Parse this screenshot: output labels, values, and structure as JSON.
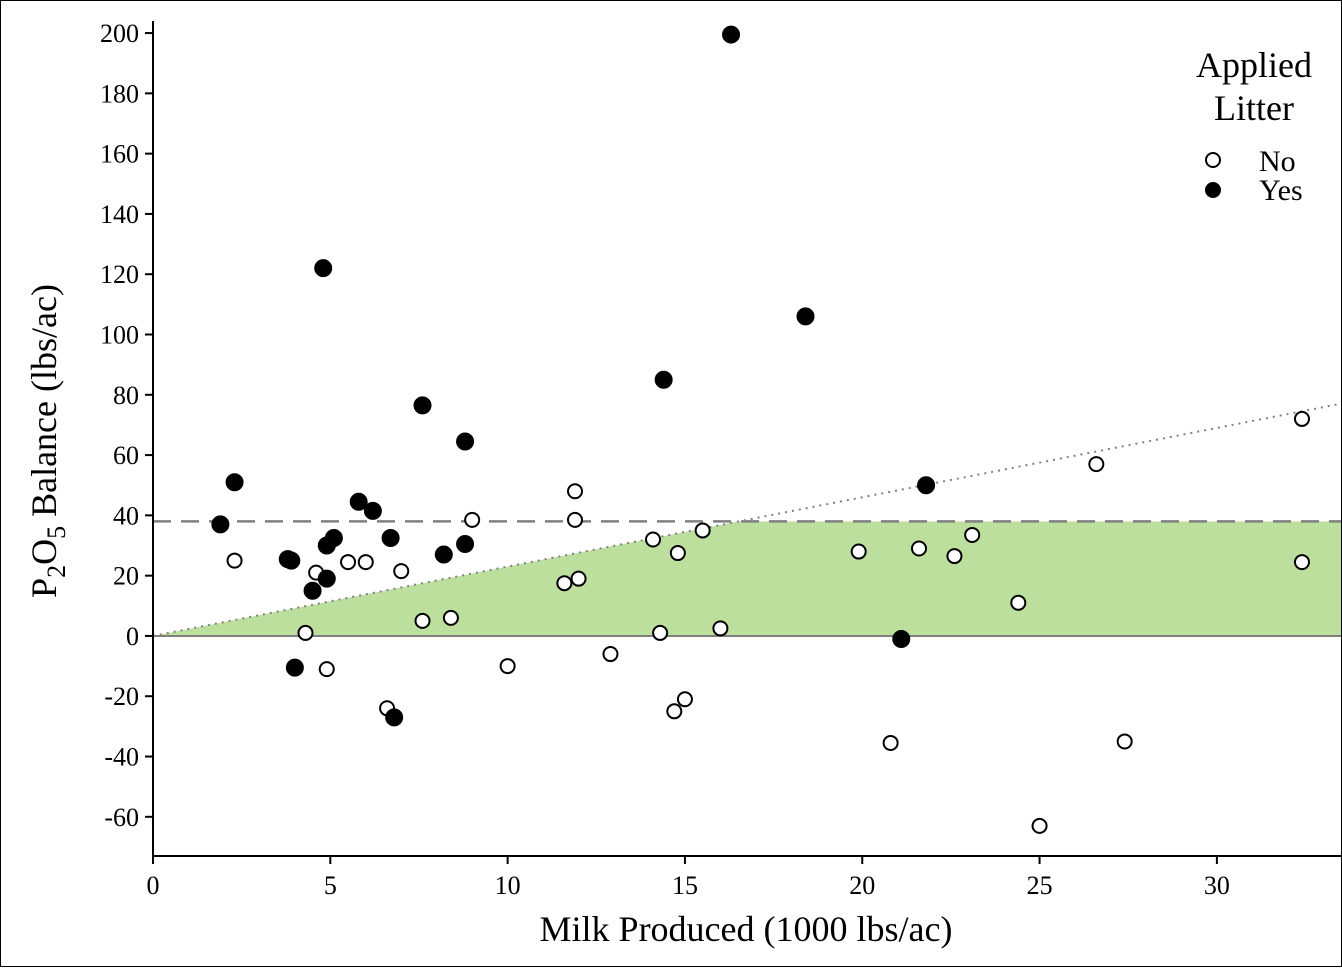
{
  "chart_data": {
    "type": "scatter",
    "xlabel": "Milk Produced (1000 lbs/ac)",
    "ylabel": {
      "p1": "P",
      "sub": "2",
      "p2": "O",
      "sub2": "5",
      "p3": " Balance (lbs/ac)"
    },
    "xlim": [
      0,
      33.5
    ],
    "ylim": [
      -73,
      204
    ],
    "x_ticks": [
      0,
      5,
      10,
      15,
      20,
      25,
      30
    ],
    "y_ticks": [
      200,
      180,
      160,
      140,
      120,
      100,
      80,
      60,
      40,
      20,
      0,
      -20,
      -40,
      -60
    ],
    "grid": false,
    "legend": {
      "title_line1": "Applied",
      "title_line2": "Litter",
      "position": "top-right",
      "entries": [
        {
          "label": "No",
          "marker": "open-circle"
        },
        {
          "label": "Yes",
          "marker": "filled-circle"
        }
      ]
    },
    "reference_lines": {
      "horizontal_dashed_y": 38,
      "dotted_slope_per_x": 2.3,
      "zero_line_y": 0
    },
    "shaded_region": {
      "description_color": "#bddf9e",
      "upper_cap": 38
    },
    "series": [
      {
        "name": "No",
        "points": [
          [
            2.3,
            25
          ],
          [
            4.3,
            1
          ],
          [
            4.6,
            21
          ],
          [
            4.9,
            -11
          ],
          [
            5.5,
            24.5
          ],
          [
            6.0,
            24.5
          ],
          [
            6.6,
            -24
          ],
          [
            7.0,
            21.5
          ],
          [
            7.6,
            5
          ],
          [
            8.4,
            6
          ],
          [
            9.0,
            38.5
          ],
          [
            10.0,
            -10
          ],
          [
            11.6,
            17.5
          ],
          [
            11.9,
            48
          ],
          [
            11.9,
            38.5
          ],
          [
            12.0,
            19
          ],
          [
            12.9,
            -6
          ],
          [
            14.1,
            32
          ],
          [
            14.3,
            1
          ],
          [
            14.7,
            -25
          ],
          [
            14.8,
            27.5
          ],
          [
            15.0,
            -21
          ],
          [
            15.5,
            35
          ],
          [
            16.0,
            2.5
          ],
          [
            19.9,
            28
          ],
          [
            20.8,
            -35.5
          ],
          [
            21.6,
            29
          ],
          [
            22.6,
            26.5
          ],
          [
            23.1,
            33.5
          ],
          [
            24.4,
            11
          ],
          [
            25.0,
            -63
          ],
          [
            26.6,
            57
          ],
          [
            27.4,
            -35
          ],
          [
            32.4,
            72
          ],
          [
            32.4,
            24.5
          ]
        ]
      },
      {
        "name": "Yes",
        "points": [
          [
            1.9,
            37
          ],
          [
            2.3,
            51
          ],
          [
            3.8,
            25.5
          ],
          [
            3.9,
            25
          ],
          [
            4.0,
            -10.5
          ],
          [
            4.5,
            15
          ],
          [
            4.8,
            122
          ],
          [
            4.9,
            30
          ],
          [
            4.9,
            19
          ],
          [
            5.1,
            32.5
          ],
          [
            5.8,
            44.5
          ],
          [
            6.2,
            41.5
          ],
          [
            6.7,
            32.5
          ],
          [
            6.8,
            -27
          ],
          [
            7.6,
            76.5
          ],
          [
            8.2,
            27
          ],
          [
            8.8,
            30.5
          ],
          [
            8.8,
            64.5
          ],
          [
            14.4,
            85
          ],
          [
            16.3,
            199.5
          ],
          [
            18.4,
            106
          ],
          [
            21.1,
            -1
          ],
          [
            21.8,
            50
          ]
        ]
      }
    ],
    "colors": {
      "shade": "#bddf9e",
      "dashed": "#808080",
      "dotted": "#808080",
      "marker": "#000000"
    }
  }
}
